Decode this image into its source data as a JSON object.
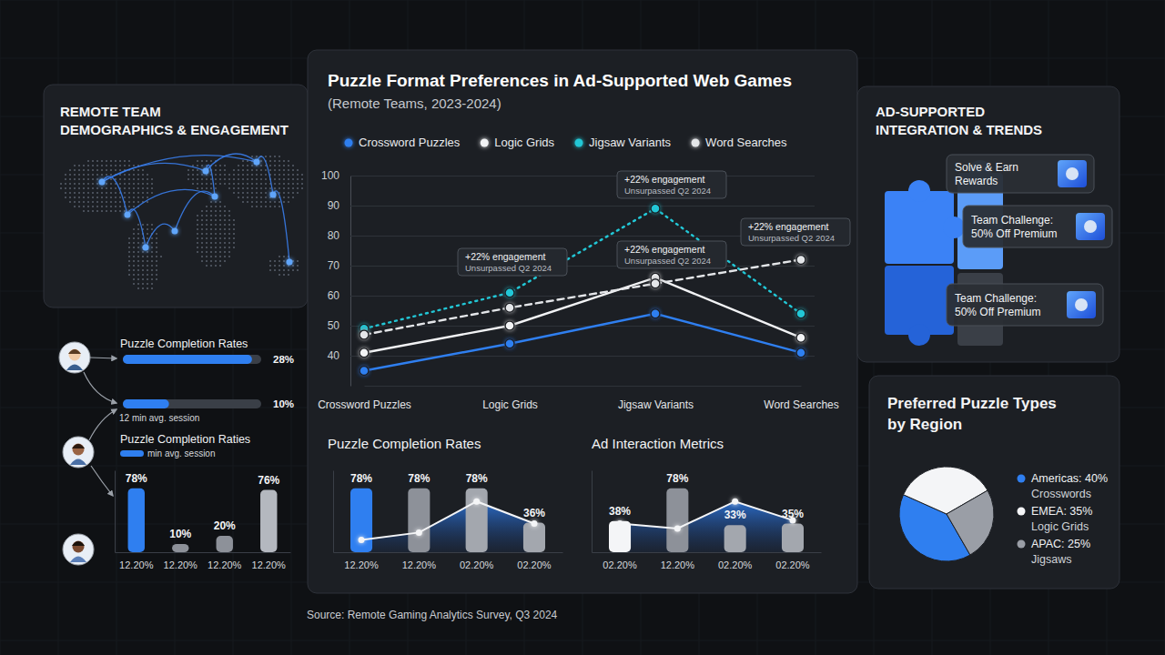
{
  "chart_data": [
    {
      "type": "line",
      "title": "Puzzle Format Preferences in Ad-Supported Web Games",
      "subtitle": "(Remote Teams, 2023-2024)",
      "categories": [
        "Crossword Puzzles",
        "Logic Grids",
        "Jigsaw Variants",
        "Word Searches"
      ],
      "series": [
        {
          "name": "Crossword Puzzles",
          "color": "#2f7ff0",
          "values": [
            35,
            44,
            54,
            41
          ],
          "line_style": "solid",
          "marker": "circle"
        },
        {
          "name": "Logic Grids",
          "color": "#f2f3f5",
          "values": [
            41,
            50,
            66,
            46
          ],
          "line_style": "solid",
          "marker": "circle"
        },
        {
          "name": "Jigsaw Variants",
          "color": "#22c7d6",
          "values": [
            49,
            61,
            89,
            54
          ],
          "line_style": "dotted",
          "marker": "circle"
        },
        {
          "name": "Word Searches",
          "color": "#e4e6e9",
          "values": [
            47,
            56,
            64,
            72
          ],
          "line_style": "dashed",
          "marker": "circle"
        }
      ],
      "ylim": [
        30,
        100
      ],
      "yticks": [
        40,
        50,
        60,
        70,
        80,
        90,
        100
      ],
      "grid": true,
      "legend": "top",
      "annotations": [
        {
          "text": "+22% engagement",
          "subtext": "Unsurpassed Q2 2024"
        },
        {
          "text": "+22% engagement",
          "subtext": "Unsurpassed Q2 2024"
        },
        {
          "text": "+22% engagement",
          "subtext": "Unsurpassed Q2 2024"
        },
        {
          "text": "+22% engagement",
          "subtext": "Unsurpassed Q2 2024"
        }
      ]
    },
    {
      "type": "bar",
      "title": "Puzzle Completion Rates",
      "categories": [
        "12.20%",
        "12.20%",
        "02.20%",
        "02.20%"
      ],
      "series": [
        {
          "type": "bar",
          "values": [
            78,
            78,
            78,
            36
          ],
          "value_labels": [
            "78%",
            "78%",
            "78%",
            "36%"
          ],
          "colors": [
            "#2f7ff0",
            "#8d9199",
            "#a3a7ae",
            "#a3a7ae"
          ],
          "data_labels": true
        },
        {
          "type": "line",
          "color": "#f4f5f7",
          "marker": "circle",
          "values": [
            15,
            24,
            62,
            35
          ]
        }
      ],
      "ylim": [
        0,
        100
      ],
      "tick_labels": "x"
    },
    {
      "type": "bar",
      "title": "Ad Interaction Metrics",
      "categories": [
        "02.20%",
        "12.20%",
        "02.20%",
        "02.20%"
      ],
      "series": [
        {
          "type": "bar",
          "values": [
            38,
            78,
            33,
            35
          ],
          "value_labels": [
            "38%",
            "78%",
            "33%",
            "35%"
          ],
          "colors": [
            "#f4f5f7",
            "#8d9199",
            "#a3a7ae",
            "#a3a7ae"
          ],
          "data_labels": true
        },
        {
          "type": "line",
          "color": "#f4f5f7",
          "marker": "circle",
          "values": [
            35,
            29,
            62,
            39
          ]
        }
      ],
      "ylim": [
        0,
        100
      ],
      "tick_labels": "x"
    },
    {
      "type": "pie",
      "title": "Preferred Puzzle Types by Region",
      "categories": [
        "Americas: 40%",
        "EMEA: 35%",
        "APAC: 25%"
      ],
      "legend_details": [
        "Crosswords",
        "Logic Grids",
        "Jigsaws"
      ],
      "values": [
        40,
        35,
        25
      ],
      "colors": [
        "#2f7ff0",
        "#f4f5f7",
        "#9a9ea6"
      ],
      "legend": "right"
    },
    {
      "type": "bar",
      "orientation": "horizontal",
      "title": "Puzzle Completion Rates",
      "values": [
        28,
        10
      ],
      "value_labels": [
        "28%",
        "10%"
      ],
      "colors": [
        "#2f7ff0",
        "#2f7ff0"
      ],
      "data_labels": true,
      "xlim": [
        0,
        30
      ],
      "tick_labels": false,
      "annotations": [
        "12 min avg. session"
      ]
    },
    {
      "type": "bar",
      "categories": [
        "12.20%",
        "12.20%",
        "12.20%",
        "12.20%"
      ],
      "series": [
        {
          "type": "bar",
          "values": [
            78,
            10,
            20,
            76
          ],
          "value_labels": [
            "78%",
            "10%",
            "20%",
            "76%"
          ],
          "colors": [
            "#2f7ff0",
            "#8d9199",
            "#8d9199",
            "#b4b8bf"
          ],
          "data_labels": true
        }
      ],
      "ylim": [
        0,
        100
      ],
      "tick_labels": "x"
    }
  ],
  "dashboard": {
    "left_panel_title": "REMOTE TEAM DEMOGRAPHICS & ENGAGEMENT",
    "right_panel_title": "AD-SUPPORTED INTEGRATION & TRENDS",
    "promo_cards": [
      "Solve & Earn Rewards",
      "Team Challenge: 50% Off Premium",
      "Team Challenge: 50% Off Premium"
    ],
    "secondary_caption": "Puzzle Completion Raties",
    "secondary_note": "min avg. session",
    "source": "Source: Remote Gaming Analytics Survey, Q3 2024"
  }
}
